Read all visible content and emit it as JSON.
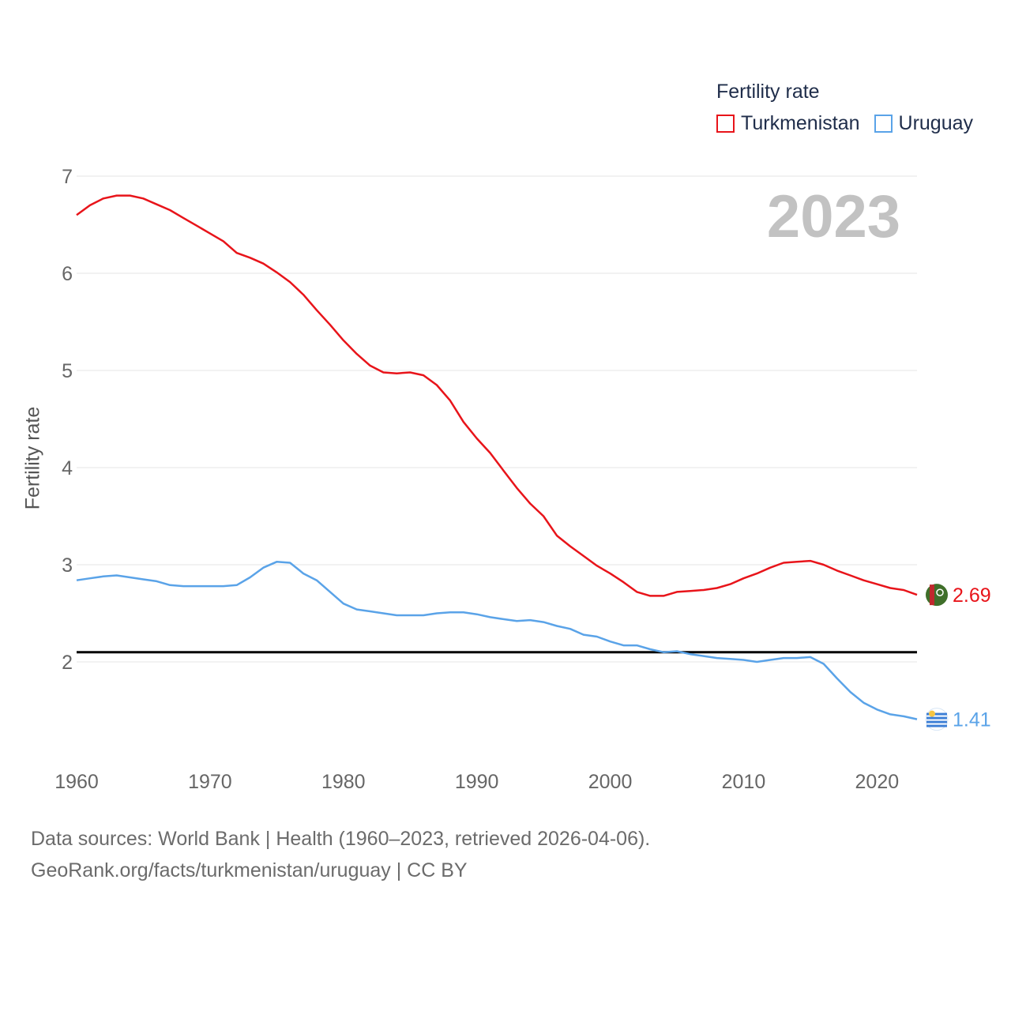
{
  "legend": {
    "title": "Fertility rate",
    "items": [
      {
        "label": "Turkmenistan",
        "color": "#e8141a"
      },
      {
        "label": "Uruguay",
        "color": "#5aa3e8"
      }
    ]
  },
  "footer": {
    "line1": "Data sources: World Bank | Health (1960–2023, retrieved 2026-04-06).",
    "line2": "GeoRank.org/facts/turkmenistan/uruguay | CC BY"
  },
  "chart_data": {
    "type": "line",
    "title": "Fertility rate",
    "year_label": "2023",
    "xlabel": "",
    "ylabel": "Fertility rate",
    "xlim": [
      1960,
      2023
    ],
    "ylim": [
      1.0,
      7.1
    ],
    "x_ticks": [
      1960,
      1970,
      1980,
      1990,
      2000,
      2010,
      2020
    ],
    "y_ticks": [
      2,
      3,
      4,
      5,
      6,
      7
    ],
    "reference_line": 2.1,
    "grid": true,
    "legend_position": "top-right",
    "x": [
      1960,
      1961,
      1962,
      1963,
      1964,
      1965,
      1966,
      1967,
      1968,
      1969,
      1970,
      1971,
      1972,
      1973,
      1974,
      1975,
      1976,
      1977,
      1978,
      1979,
      1980,
      1981,
      1982,
      1983,
      1984,
      1985,
      1986,
      1987,
      1988,
      1989,
      1990,
      1991,
      1992,
      1993,
      1994,
      1995,
      1996,
      1997,
      1998,
      1999,
      2000,
      2001,
      2002,
      2003,
      2004,
      2005,
      2006,
      2007,
      2008,
      2009,
      2010,
      2011,
      2012,
      2013,
      2014,
      2015,
      2016,
      2017,
      2018,
      2019,
      2020,
      2021,
      2022,
      2023
    ],
    "series": [
      {
        "name": "Turkmenistan",
        "color": "#e8141a",
        "end_label": "2.69",
        "values": [
          6.6,
          6.7,
          6.77,
          6.8,
          6.8,
          6.77,
          6.71,
          6.65,
          6.57,
          6.49,
          6.41,
          6.33,
          6.21,
          6.16,
          6.1,
          6.01,
          5.91,
          5.78,
          5.62,
          5.47,
          5.31,
          5.17,
          5.05,
          4.98,
          4.97,
          4.98,
          4.95,
          4.85,
          4.69,
          4.47,
          4.3,
          4.15,
          3.97,
          3.79,
          3.63,
          3.5,
          3.3,
          3.19,
          3.09,
          2.99,
          2.91,
          2.82,
          2.72,
          2.68,
          2.68,
          2.72,
          2.73,
          2.74,
          2.76,
          2.8,
          2.86,
          2.91,
          2.97,
          3.02,
          3.03,
          3.04,
          3.0,
          2.94,
          2.89,
          2.84,
          2.8,
          2.76,
          2.74,
          2.69
        ]
      },
      {
        "name": "Uruguay",
        "color": "#5aa3e8",
        "end_label": "1.41",
        "values": [
          2.84,
          2.86,
          2.88,
          2.89,
          2.87,
          2.85,
          2.83,
          2.79,
          2.78,
          2.78,
          2.78,
          2.78,
          2.79,
          2.87,
          2.97,
          3.03,
          3.02,
          2.91,
          2.84,
          2.72,
          2.6,
          2.54,
          2.52,
          2.5,
          2.48,
          2.48,
          2.48,
          2.5,
          2.51,
          2.51,
          2.49,
          2.46,
          2.44,
          2.42,
          2.43,
          2.41,
          2.37,
          2.34,
          2.28,
          2.26,
          2.21,
          2.17,
          2.17,
          2.13,
          2.1,
          2.11,
          2.08,
          2.06,
          2.04,
          2.03,
          2.02,
          2.0,
          2.02,
          2.04,
          2.04,
          2.05,
          1.98,
          1.83,
          1.69,
          1.58,
          1.51,
          1.46,
          1.44,
          1.41
        ]
      }
    ]
  }
}
